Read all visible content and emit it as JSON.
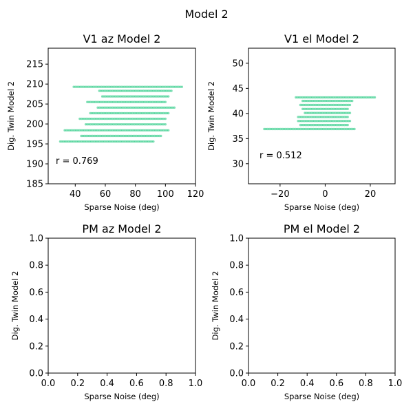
{
  "suptitle": "Model 2",
  "chart_data": [
    {
      "type": "scatter",
      "title": "V1 az Model 2",
      "xlabel": "Sparse Noise (deg)",
      "ylabel": "Dig. Twin Model 2",
      "xlim": [
        22,
        120
      ],
      "ylim": [
        185,
        219
      ],
      "xticks": [
        40,
        60,
        80,
        100,
        120
      ],
      "yticks": [
        185,
        190,
        195,
        200,
        205,
        210,
        215
      ],
      "annotation": "r = 0.769",
      "point_color": "#2ecc87",
      "levels": [
        {
          "y": 195.6,
          "x_min": 30,
          "x_max": 92
        },
        {
          "y": 197.0,
          "x_min": 44,
          "x_max": 97
        },
        {
          "y": 198.4,
          "x_min": 33,
          "x_max": 102
        },
        {
          "y": 199.9,
          "x_min": 47,
          "x_max": 100
        },
        {
          "y": 201.3,
          "x_min": 43,
          "x_max": 100
        },
        {
          "y": 202.7,
          "x_min": 50,
          "x_max": 102
        },
        {
          "y": 204.1,
          "x_min": 55,
          "x_max": 106
        },
        {
          "y": 205.5,
          "x_min": 48,
          "x_max": 100
        },
        {
          "y": 206.9,
          "x_min": 58,
          "x_max": 102
        },
        {
          "y": 208.3,
          "x_min": 56,
          "x_max": 104
        },
        {
          "y": 209.3,
          "x_min": 39,
          "x_max": 111
        }
      ]
    },
    {
      "type": "scatter",
      "title": "V1 el Model 2",
      "xlabel": "Sparse Noise (deg)",
      "ylabel": "Dig. Twin Model 2",
      "xlim": [
        -34,
        31
      ],
      "ylim": [
        26,
        53
      ],
      "xticks": [
        -20,
        0,
        20
      ],
      "yticks": [
        30,
        35,
        40,
        45,
        50
      ],
      "annotation": "r = 0.512",
      "point_color": "#2ecc87",
      "levels": [
        {
          "y": 36.9,
          "x_min": -27,
          "x_max": 13
        },
        {
          "y": 37.7,
          "x_min": -11,
          "x_max": 10
        },
        {
          "y": 38.5,
          "x_min": -12,
          "x_max": 11
        },
        {
          "y": 39.3,
          "x_min": -12,
          "x_max": 10
        },
        {
          "y": 40.1,
          "x_min": -9,
          "x_max": 11
        },
        {
          "y": 40.9,
          "x_min": -10,
          "x_max": 10
        },
        {
          "y": 41.7,
          "x_min": -11,
          "x_max": 11
        },
        {
          "y": 42.5,
          "x_min": -10,
          "x_max": 12
        },
        {
          "y": 43.2,
          "x_min": -13,
          "x_max": 22
        }
      ]
    },
    {
      "type": "scatter",
      "title": "PM az Model 2",
      "xlabel": "Sparse Noise (deg)",
      "ylabel": "Dig. Twin Model 2",
      "xlim": [
        0,
        1
      ],
      "ylim": [
        0,
        1
      ],
      "xticks": [
        0.0,
        0.2,
        0.4,
        0.6,
        0.8,
        1.0
      ],
      "yticks": [
        0.0,
        0.2,
        0.4,
        0.6,
        0.8,
        1.0
      ],
      "annotation": "",
      "point_color": "#2ecc87",
      "levels": []
    },
    {
      "type": "scatter",
      "title": "PM el Model 2",
      "xlabel": "Sparse Noise (deg)",
      "ylabel": "Dig. Twin Model 2",
      "xlim": [
        0,
        1
      ],
      "ylim": [
        0,
        1
      ],
      "xticks": [
        0.0,
        0.2,
        0.4,
        0.6,
        0.8,
        1.0
      ],
      "yticks": [
        0.0,
        0.2,
        0.4,
        0.6,
        0.8,
        1.0
      ],
      "annotation": "",
      "point_color": "#2ecc87",
      "levels": []
    }
  ]
}
